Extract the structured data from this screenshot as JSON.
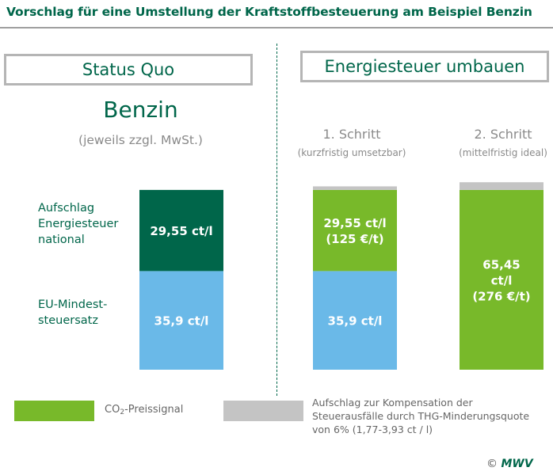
{
  "title": "Vorschlag für eine Umstellung der Kraftstoffbesteuerung am Beispiel Benzin",
  "headers": {
    "status_quo": "Status Quo",
    "energie": "Energiesteuer umbauen"
  },
  "fuel": {
    "name": "Benzin",
    "note": "(jeweils zzgl. MwSt.)"
  },
  "steps": [
    {
      "title": "1. Schritt",
      "subtitle": "(kurzfristig umsetzbar)"
    },
    {
      "title": "2. Schritt",
      "subtitle": "(mittelfristig ideal)"
    }
  ],
  "row_labels": {
    "aufschlag": [
      "Aufschlag",
      "Energiesteuer",
      "national"
    ],
    "eu": [
      "EU-Mindest-",
      "steuersatz"
    ]
  },
  "legend": {
    "green_prefix": "CO",
    "green_sub": "2",
    "green_suffix": "-Preissignal",
    "gray_lines": [
      "Aufschlag zur Kompensation der",
      "Steuerausfälle durch THG-Minderungsquote",
      "von 6% (1,77-3,93 ct / l)"
    ]
  },
  "copyright": {
    "symbol": "©",
    "brand": "MWV"
  },
  "colors": {
    "dark_green": "#00664a",
    "light_blue": "#6ab9e8",
    "lime_green": "#78b92a",
    "gray": "#c4c4c4"
  },
  "chart_data": {
    "type": "bar",
    "stacked": true,
    "unit": "ct/l",
    "categories": [
      "Status Quo",
      "1. Schritt",
      "2. Schritt"
    ],
    "series": [
      {
        "name": "EU-Mindeststeuersatz",
        "color": "#6ab9e8",
        "values": [
          35.9,
          35.9,
          0
        ],
        "labels": [
          [
            "35,9 ct/l"
          ],
          [
            "35,9 ct/l"
          ],
          []
        ]
      },
      {
        "name": "Aufschlag Energiesteuer national",
        "color": "#00664a",
        "values": [
          29.55,
          0,
          0
        ],
        "labels": [
          [
            "29,55 ct/l"
          ],
          [],
          []
        ]
      },
      {
        "name": "CO2-Preissignal",
        "color": "#78b92a",
        "values": [
          0,
          29.55,
          65.45
        ],
        "labels": [
          [],
          [
            "29,55 ct/l",
            "(125 €/t)"
          ],
          [
            "65,45",
            "ct/l",
            "(276 €/t)"
          ]
        ]
      },
      {
        "name": "Aufschlag zur Kompensation der Steuerausfälle durch THG-Minderungsquote",
        "color": "#c4c4c4",
        "values": [
          0,
          1.3,
          2.8
        ],
        "labels": [
          [],
          [],
          []
        ]
      }
    ]
  }
}
